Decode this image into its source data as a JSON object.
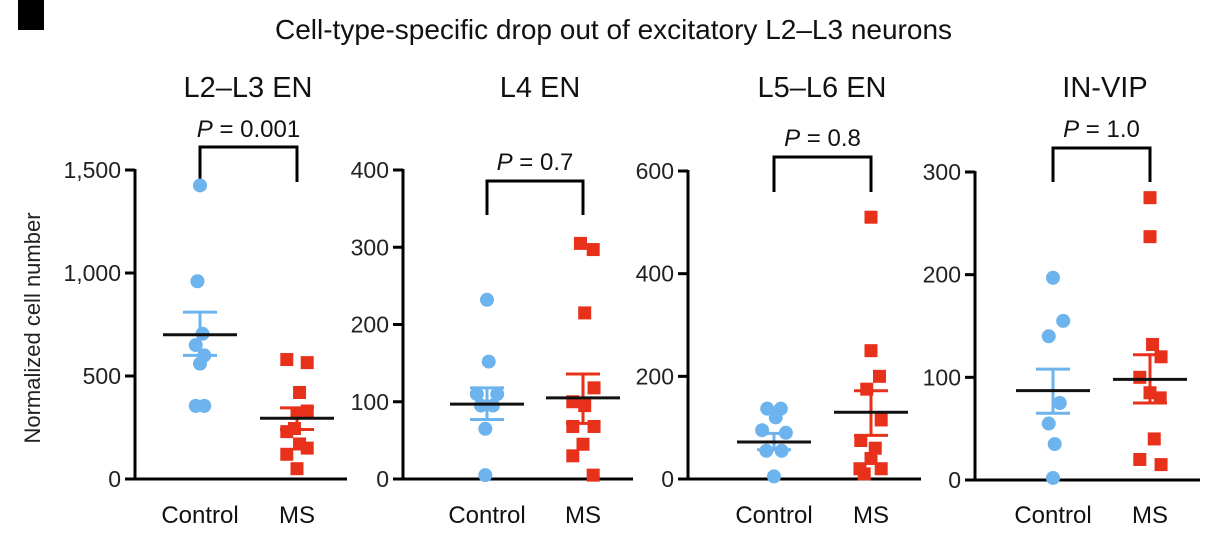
{
  "figure": {
    "title": "Cell-type-specific drop out of excitatory L2–L3 neurons",
    "ylabel": "Normalized cell number"
  },
  "colors": {
    "control": "#6db3ee",
    "ms": "#e8311a",
    "axis": "#000000"
  },
  "chart_data": [
    {
      "type": "scatter",
      "title": "L2–L3 EN",
      "p_label": "P",
      "p_value": " = 0.001",
      "categories": [
        "Control",
        "MS"
      ],
      "ylim": [
        0,
        1500
      ],
      "yticks": [
        0,
        500,
        1000,
        1500
      ],
      "ytick_labels": [
        "0",
        "500",
        "1,000",
        "1,500"
      ],
      "series": [
        {
          "name": "Control",
          "marker": "circle",
          "x_offsets": [
            0,
            -0.03,
            0.03,
            -0.05,
            0.05,
            0,
            -0.05,
            0.05
          ],
          "values": [
            1425,
            960,
            705,
            650,
            600,
            560,
            355,
            355
          ],
          "mean": 700,
          "sem_upper": 810,
          "sem_lower": 600
        },
        {
          "name": "MS",
          "marker": "square",
          "x_offsets": [
            -0.12,
            0.12,
            0.03,
            0,
            0.12,
            -0.03,
            -0.12,
            0.03,
            0.12,
            -0.12,
            0
          ],
          "values": [
            580,
            565,
            420,
            320,
            330,
            245,
            230,
            170,
            150,
            120,
            50
          ],
          "mean": 295,
          "sem_upper": 345,
          "sem_lower": 240
        }
      ]
    },
    {
      "type": "scatter",
      "title": "L4 EN",
      "p_label": "P",
      "p_value": " = 0.7",
      "categories": [
        "Control",
        "MS"
      ],
      "ylim": [
        0,
        400
      ],
      "yticks": [
        0,
        100,
        200,
        300,
        400
      ],
      "ytick_labels": [
        "0",
        "100",
        "200",
        "300",
        "400"
      ],
      "series": [
        {
          "name": "Control",
          "marker": "circle",
          "x_offsets": [
            0,
            0.02,
            -0.12,
            0.12,
            -0.07,
            0.07,
            -0.02,
            -0.02
          ],
          "values": [
            232,
            152,
            110,
            110,
            95,
            95,
            65,
            5
          ],
          "mean": 97,
          "sem_upper": 118,
          "sem_lower": 77
        },
        {
          "name": "MS",
          "marker": "square",
          "x_offsets": [
            -0.03,
            0.12,
            0.02,
            0.13,
            -0.12,
            0.02,
            -0.12,
            0.13,
            0,
            -0.12,
            0.12
          ],
          "values": [
            305,
            297,
            215,
            118,
            100,
            95,
            68,
            68,
            45,
            30,
            5
          ],
          "mean": 105,
          "sem_upper": 136,
          "sem_lower": 72
        }
      ]
    },
    {
      "type": "scatter",
      "title": "L5–L6 EN",
      "p_label": "P",
      "p_value": " = 0.8",
      "categories": [
        "Control",
        "MS"
      ],
      "ylim": [
        0,
        600
      ],
      "yticks": [
        0,
        200,
        400,
        600
      ],
      "ytick_labels": [
        "0",
        "200",
        "400",
        "600"
      ],
      "series": [
        {
          "name": "Control",
          "marker": "circle",
          "x_offsets": [
            -0.08,
            0.08,
            0.02,
            -0.14,
            0.14,
            -0.09,
            0.09,
            0
          ],
          "values": [
            137,
            137,
            120,
            95,
            90,
            55,
            55,
            5
          ],
          "mean": 72,
          "sem_upper": 89,
          "sem_lower": 57
        },
        {
          "name": "MS",
          "marker": "square",
          "x_offsets": [
            0,
            0,
            0.1,
            -0.05,
            0.12,
            -0.12,
            0.05,
            0,
            -0.13,
            0.12,
            -0.08
          ],
          "values": [
            510,
            250,
            200,
            175,
            115,
            75,
            60,
            40,
            20,
            20,
            10
          ],
          "mean": 130,
          "sem_upper": 172,
          "sem_lower": 85
        }
      ]
    },
    {
      "type": "scatter",
      "title": "IN-VIP",
      "p_label": "P",
      "p_value": " = 1.0",
      "categories": [
        "Control",
        "MS"
      ],
      "ylim": [
        0,
        300
      ],
      "yticks": [
        0,
        100,
        200,
        300
      ],
      "ytick_labels": [
        "0",
        "100",
        "200",
        "300"
      ],
      "series": [
        {
          "name": "Control",
          "marker": "circle",
          "x_offsets": [
            0,
            0.12,
            -0.05,
            0.08,
            -0.05,
            0.02,
            0
          ],
          "values": [
            197,
            155,
            140,
            75,
            55,
            35,
            2
          ],
          "mean": 87,
          "sem_upper": 108,
          "sem_lower": 65
        },
        {
          "name": "MS",
          "marker": "square",
          "x_offsets": [
            0,
            0,
            0.03,
            0.13,
            -0.12,
            0,
            0.12,
            0.05,
            -0.12,
            0.13
          ],
          "values": [
            275,
            237,
            132,
            120,
            100,
            85,
            80,
            40,
            20,
            15
          ],
          "mean": 98,
          "sem_upper": 122,
          "sem_lower": 75
        }
      ]
    }
  ]
}
